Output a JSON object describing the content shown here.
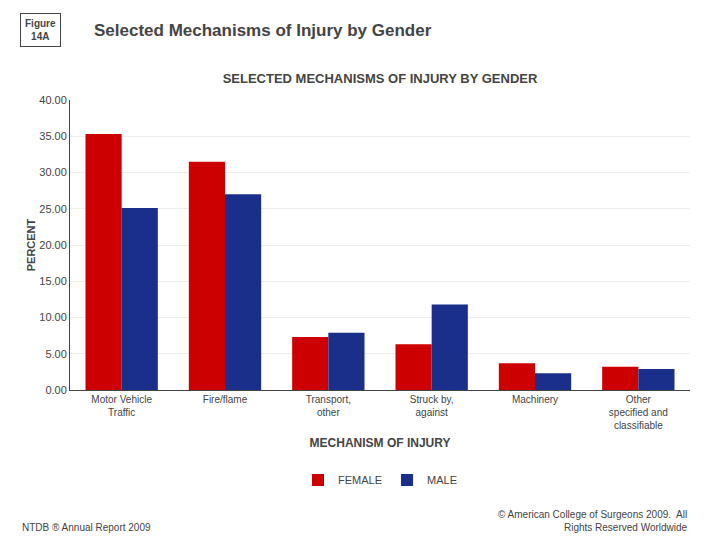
{
  "chart_data": {
    "type": "bar",
    "title": "SELECTED MECHANISMS OF INJURY BY GENDER",
    "categories": [
      "Motor Vehicle\nTraffic",
      "Fire/flame",
      "Transport,\nother",
      "Struck by,\nagainst",
      "Machinery",
      "Other\nspecified and\nclassifiable"
    ],
    "series": [
      {
        "name": "FEMALE",
        "color": "#cc0000",
        "values": [
          35.3,
          31.5,
          7.3,
          6.3,
          3.7,
          3.2
        ]
      },
      {
        "name": "MALE",
        "color": "#1a2f8a",
        "values": [
          25.1,
          27.0,
          7.9,
          11.8,
          2.3,
          2.9
        ]
      }
    ],
    "xlabel": "MECHANISM OF INJURY",
    "ylabel": "PERCENT",
    "ylim": [
      0,
      40
    ],
    "yticks": [
      {
        "value": 0,
        "label": "0.00"
      },
      {
        "value": 5,
        "label": "5.00"
      },
      {
        "value": 10,
        "label": "10.00"
      },
      {
        "value": 15,
        "label": "15.00"
      },
      {
        "value": 20,
        "label": "20.00"
      },
      {
        "value": 25,
        "label": "25.00"
      },
      {
        "value": 30,
        "label": "30.00"
      },
      {
        "value": 35,
        "label": "35.00"
      },
      {
        "value": 40,
        "label": "40.00"
      }
    ],
    "grid": true,
    "legend": "bottom",
    "annotations": [
      {
        "text": "Selected Mechanisms of Injury by Gender"
      },
      {
        "text": "Figure\n14A"
      },
      {
        "text": "NTDB ® Annual Report 2009"
      },
      {
        "text": "© American College of Surgeons 2009.  All\nRights Reserved Worldwide"
      }
    ]
  }
}
